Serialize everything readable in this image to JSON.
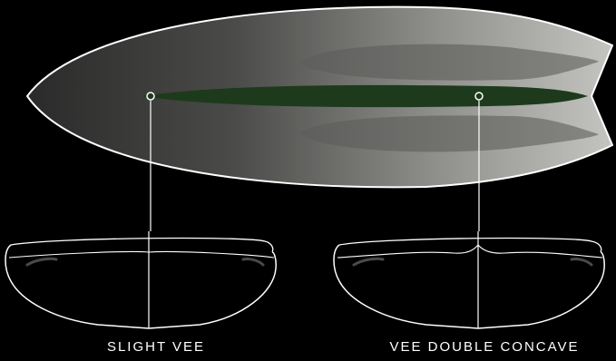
{
  "labels": {
    "left": "SLIGHT VEE",
    "right": "VEE DOUBLE CONCAVE"
  },
  "colors": {
    "background": "#000000",
    "board_dark": "#2a2a2a",
    "board_light": "#c4c4c0",
    "center_channel": "#1e3a1d",
    "concave_channels": "#6e6e6b",
    "outline": "#ffffff"
  }
}
